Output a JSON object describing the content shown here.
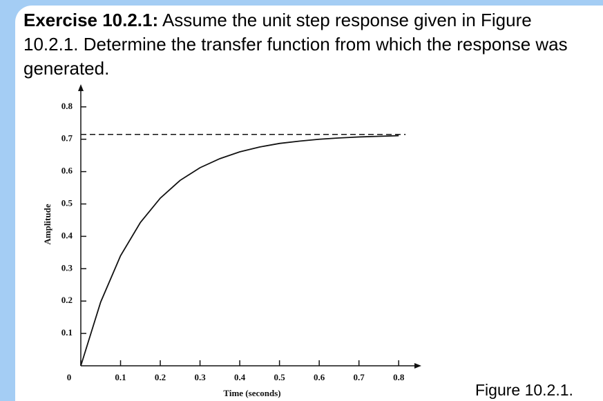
{
  "exercise_label": "Exercise 10.2.1:",
  "exercise_text": "Assume the unit step response given in Figure 10.2.1. Determine the transfer function from which the response was generated.",
  "caption": "Figure 10.2.1.",
  "chart_data": {
    "type": "line",
    "xlabel": "Time (seconds)",
    "ylabel": "Amplitude",
    "x": [
      0,
      0.05,
      0.1,
      0.15,
      0.2,
      0.25,
      0.3,
      0.35,
      0.4,
      0.45,
      0.5,
      0.55,
      0.6,
      0.65,
      0.7,
      0.75,
      0.8
    ],
    "series": [
      {
        "color": "#111111",
        "values": [
          0,
          0.197,
          0.34,
          0.443,
          0.518,
          0.573,
          0.612,
          0.64,
          0.661,
          0.676,
          0.687,
          0.694,
          0.7,
          0.704,
          0.707,
          0.709,
          0.711
        ]
      }
    ],
    "asymptote": 0.715,
    "xlim": [
      0,
      0.857
    ],
    "ylim": [
      0,
      0.87
    ],
    "xticks": [
      0,
      0.1,
      0.2,
      0.3,
      0.4,
      0.5,
      0.6,
      0.7,
      0.8
    ],
    "yticks": [
      0.1,
      0.2,
      0.3,
      0.4,
      0.5,
      0.6,
      0.7,
      0.8
    ]
  }
}
